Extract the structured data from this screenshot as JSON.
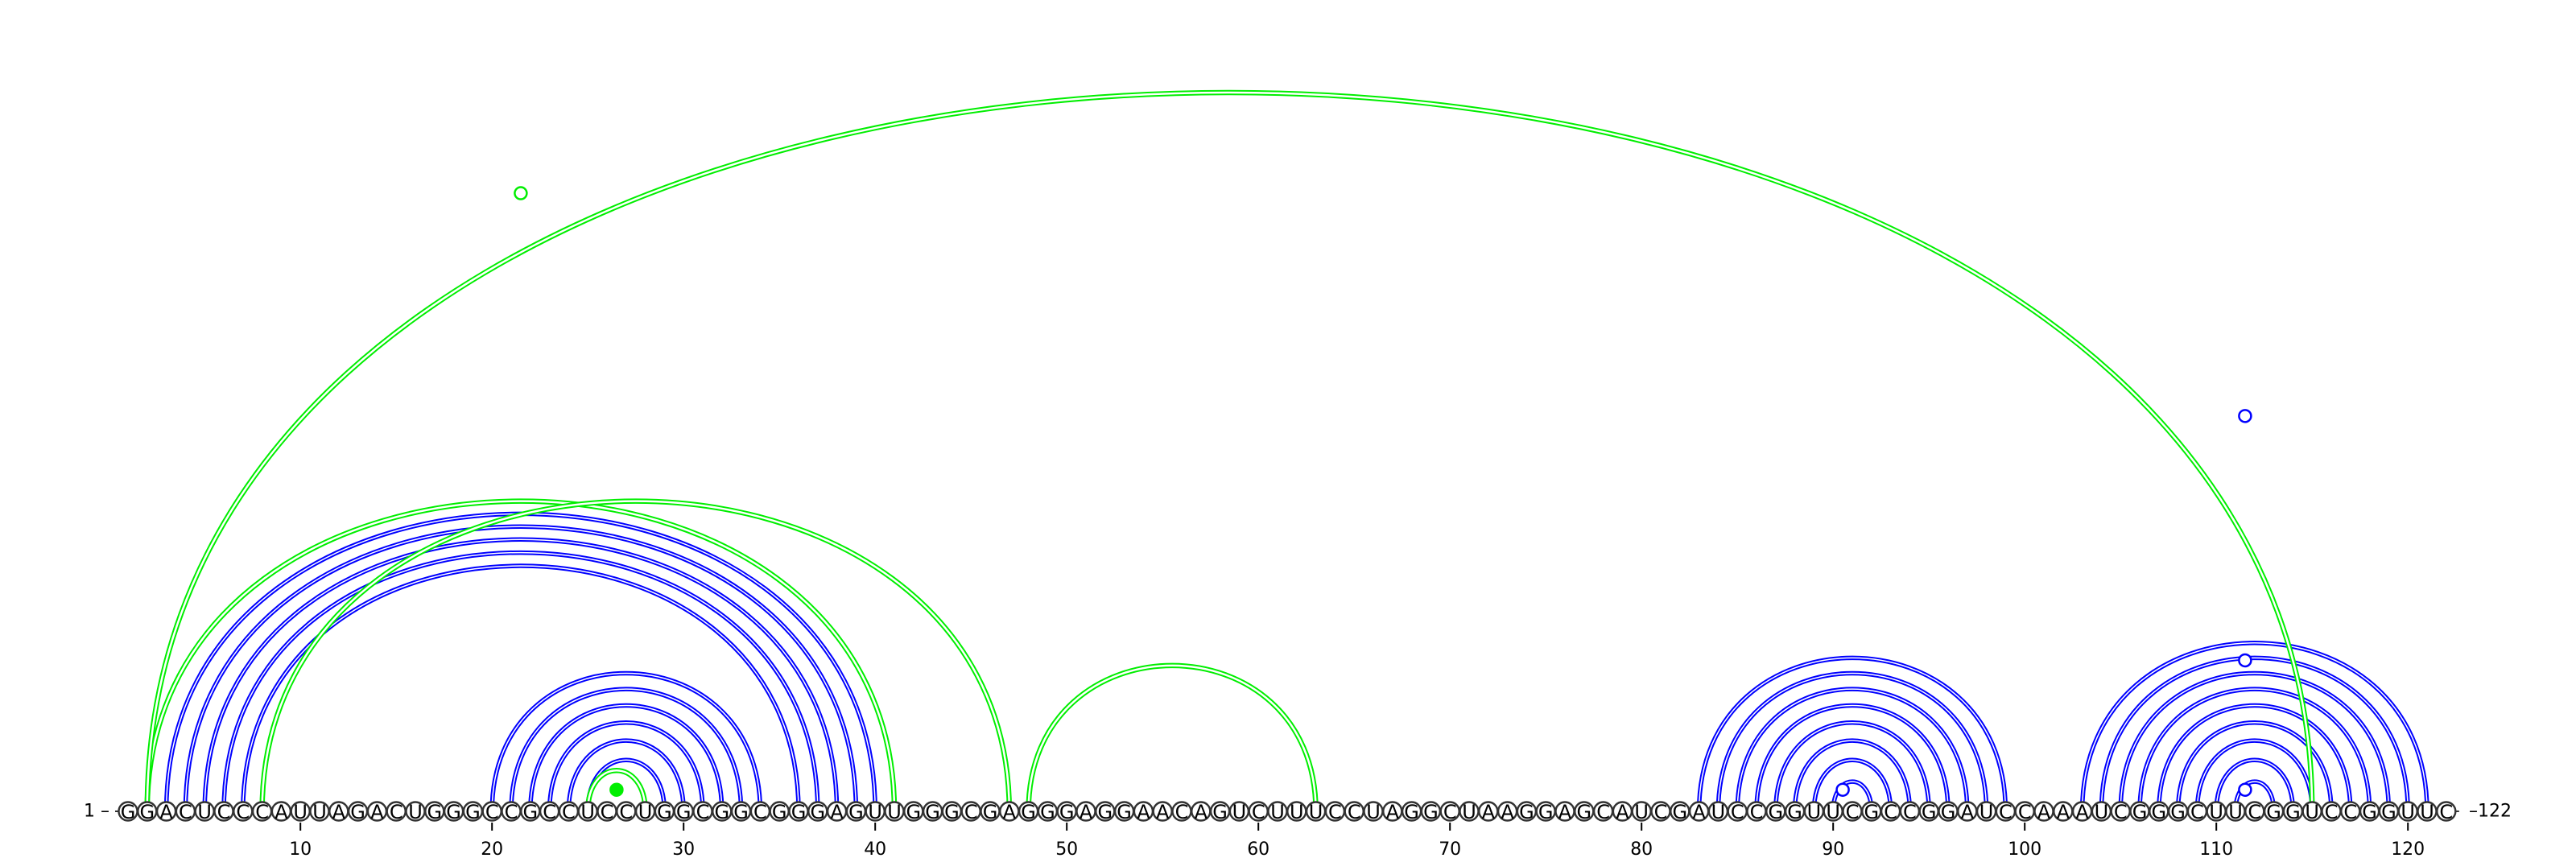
{
  "sequence": "GGACUCCCAUUAGACUGGGCCGCCUCCUGGCGGCGGGAGUUGGGCGAGGGAGGAACAGUCUUUCCUAGGCUAAGGAGCAUCGAUCCGGUUCGCCGGAUCCAAAUCGGGCUUCGGUCCGGUUC",
  "start_label": "1 –",
  "end_label": "–122",
  "ticks": [
    10,
    20,
    30,
    40,
    50,
    60,
    70,
    80,
    90,
    100,
    110,
    120
  ],
  "colors": {
    "blue": "#0000ff",
    "green": "#00ee00"
  },
  "arcs": {
    "blue": [
      [
        5,
        38
      ],
      [
        6,
        37
      ],
      [
        7,
        36
      ],
      [
        4,
        39
      ],
      [
        3,
        40
      ],
      [
        20,
        34
      ],
      [
        21,
        33
      ],
      [
        22,
        32
      ],
      [
        23,
        31
      ],
      [
        24,
        30
      ],
      [
        25,
        29
      ],
      [
        83,
        99
      ],
      [
        84,
        98
      ],
      [
        85,
        97
      ],
      [
        86,
        96
      ],
      [
        87,
        95
      ],
      [
        88,
        94
      ],
      [
        89,
        93
      ],
      [
        90,
        92
      ],
      [
        103,
        121
      ],
      [
        104,
        120
      ],
      [
        105,
        119
      ],
      [
        106,
        118
      ],
      [
        107,
        117
      ],
      [
        108,
        116
      ],
      [
        109,
        115
      ],
      [
        110,
        114
      ],
      [
        111,
        113
      ]
    ],
    "green": [
      [
        2,
        41
      ],
      [
        2,
        115
      ],
      [
        8,
        47
      ],
      [
        48,
        63
      ],
      [
        25,
        28
      ]
    ]
  },
  "markers": [
    {
      "pos": 21.5,
      "level": 0.86,
      "filled": false,
      "color": "green"
    },
    {
      "pos": 26.5,
      "level": 0.03,
      "filled": true,
      "color": "green"
    },
    {
      "pos": 90.5,
      "level": 0.03,
      "filled": false,
      "color": "blue"
    },
    {
      "pos": 111.5,
      "level": 0.03,
      "filled": false,
      "color": "blue"
    },
    {
      "pos": 111.5,
      "level": 0.21,
      "filled": false,
      "color": "blue"
    },
    {
      "pos": 111.5,
      "level": 0.55,
      "filled": false,
      "color": "blue"
    }
  ]
}
